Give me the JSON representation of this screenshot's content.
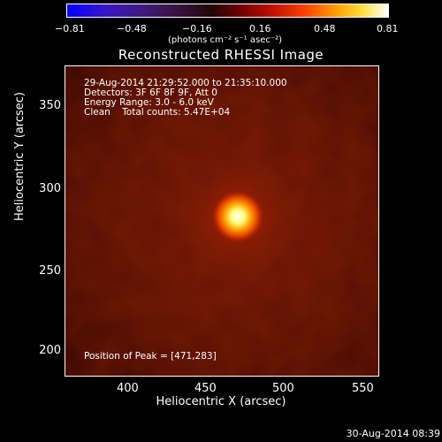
{
  "colorbar": {
    "ticks": [
      "−0.81",
      "−0.48",
      "−0.16",
      "0.16",
      "0.48",
      "0.81"
    ],
    "units": "(photons cm⁻² s⁻¹ asec⁻²)"
  },
  "plot": {
    "title": "Reconstructed RHESSI Image",
    "annotations": {
      "time": "29-Aug-2014 21:29:52.000 to 21:35:10.000",
      "detectors": "Detectors: 3F 6F 8F 9F, Att 0",
      "energy": "Energy Range: 3.0 - 6.0 keV",
      "method": "Clean    Total counts: 5.47E+04",
      "peak": "Position of Peak = [471,283]"
    },
    "y_axis": {
      "label": "Heliocentric Y (arcsec)",
      "ticks": [
        "350",
        "300",
        "250",
        "200"
      ]
    },
    "x_axis": {
      "label": "Heliocentric X (arcsec)",
      "ticks": [
        "400",
        "450",
        "500",
        "550"
      ]
    }
  },
  "timestamp": "30-Aug-2014 08:39"
}
